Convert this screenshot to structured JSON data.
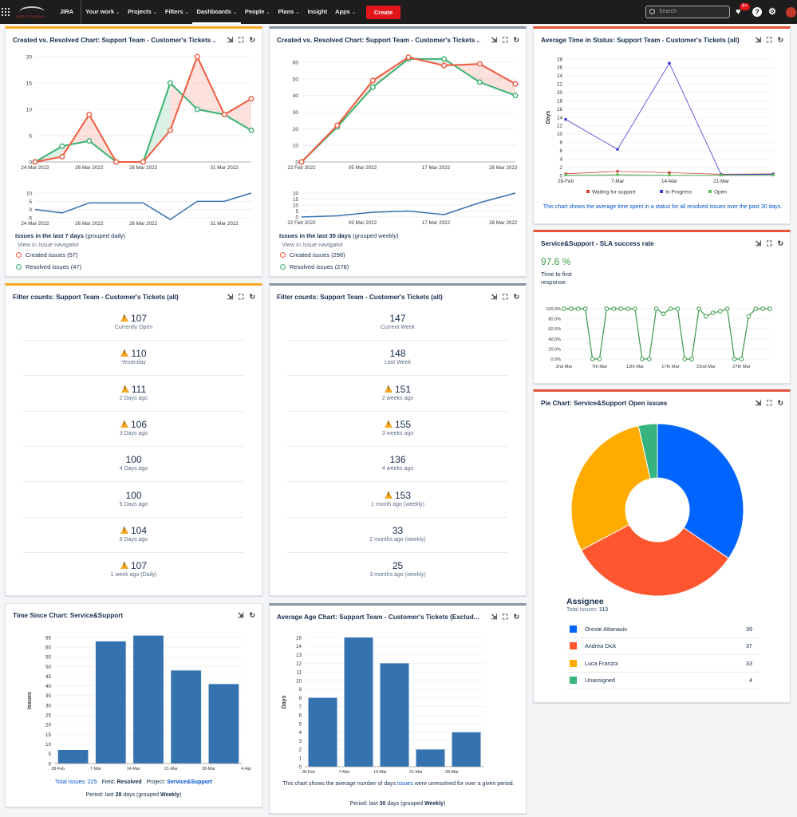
{
  "topbar": {
    "logo_text": "WORLD PHOENIX",
    "app": "JIRA",
    "nav": [
      {
        "label": "Your work",
        "chev": true
      },
      {
        "label": "Projects",
        "chev": true
      },
      {
        "label": "Filters",
        "chev": true
      },
      {
        "label": "Dashboards",
        "chev": true,
        "active": true
      },
      {
        "label": "People",
        "chev": true
      },
      {
        "label": "Plans",
        "chev": true
      },
      {
        "label": "Insight",
        "chev": false
      },
      {
        "label": "Apps",
        "chev": true
      }
    ],
    "create": "Create",
    "search_placeholder": "Search",
    "notif_badge": "9+"
  },
  "panel1": {
    "title": "Created vs. Resolved Chart: Support Team - Customer's Tickets ...",
    "summary_bold": "Issues in the last 7 days",
    "summary_rest": " (grouped daily)",
    "nav_link": "View in Issue navigator",
    "created": "Created issues (57)",
    "resolved": "Resolved issues (47)"
  },
  "panel2": {
    "title": "Created vs. Resolved Chart: Support Team - Customer's Tickets ...",
    "summary_bold": "Issues in the last 35 days",
    "summary_rest": " (grouped weekly)",
    "nav_link": "View in Issue navigator",
    "created": "Created issues (298)",
    "resolved": "Resolved issues (278)"
  },
  "panel3": {
    "title": "Average Time in Status: Support Team - Customer's Tickets (all)",
    "note": "This chart shows the average time spent in a status for all resolved issues over the past 30 days."
  },
  "panel4": {
    "title": "Service&Support - SLA success rate",
    "value": "97.6 %",
    "label": "Time to first response"
  },
  "panel5": {
    "title": "Filter counts: Support Team - Customer's Tickets (all)",
    "rows": [
      {
        "num": "107",
        "lbl": "Currently Open",
        "warn": true
      },
      {
        "num": "110",
        "lbl": "Yesterday",
        "warn": true
      },
      {
        "num": "111",
        "lbl": "2 Days ago",
        "warn": true
      },
      {
        "num": "106",
        "lbl": "3 Days ago",
        "warn": true
      },
      {
        "num": "100",
        "lbl": "4 Days ago",
        "warn": false
      },
      {
        "num": "100",
        "lbl": "5 Days ago",
        "warn": false
      },
      {
        "num": "104",
        "lbl": "6 Days ago",
        "warn": true
      },
      {
        "num": "107",
        "lbl": "1 week ago (Daily)",
        "warn": true
      }
    ]
  },
  "panel6": {
    "title": "Filter counts: Support Team - Customer's Tickets (all)",
    "rows": [
      {
        "num": "147",
        "lbl": "Current Week",
        "warn": false
      },
      {
        "num": "148",
        "lbl": "Last Week",
        "warn": false
      },
      {
        "num": "151",
        "lbl": "2 weeks ago",
        "warn": true
      },
      {
        "num": "155",
        "lbl": "3 weeks ago",
        "warn": true
      },
      {
        "num": "136",
        "lbl": "4 weeks ago",
        "warn": false
      },
      {
        "num": "153",
        "lbl": "1 month ago (weekly)",
        "warn": true
      },
      {
        "num": "33",
        "lbl": "2 months ago (weekly)",
        "warn": false
      },
      {
        "num": "25",
        "lbl": "3 months ago (weekly)",
        "warn": false
      }
    ]
  },
  "panel7": {
    "title": "Pie Chart: Service&Support Open issues",
    "legend_title": "Assignee",
    "total_label": "Total Issues: ",
    "total": "113"
  },
  "panel8": {
    "title": "Time Since Chart: Service&Support",
    "f1_label": "Total Issues: ",
    "f1_val": "225",
    "f2_label": "Field: ",
    "f2_val": "Resolved",
    "f3_label": "Project: ",
    "f3_val": "Service&Support",
    "period_pre": "Period: last ",
    "period_n": "28",
    "period_mid": " days (grouped ",
    "period_g": "Weekly",
    "period_end": ")"
  },
  "panel9": {
    "title": "Average Age Chart: Support Team - Customer's Tickets (Exclud...",
    "note_pre": "This chart shows the average number of days ",
    "note_link": "issues",
    "note_post": " were unresolved for over a given period.",
    "period_pre": "Period: last ",
    "period_n": "30",
    "period_mid": " days (grouped ",
    "period_g": "Weekly",
    "period_end": ")"
  },
  "colors": {
    "created": "#f05a40",
    "resolved": "#3bb273",
    "blue": "#3572b0",
    "pie": [
      "#0065ff",
      "#ff5630",
      "#ffab00",
      "#36b37e"
    ]
  },
  "chart_data": [
    {
      "id": "created-vs-resolved-7d",
      "type": "line",
      "x": [
        "24 Mar 2022",
        "25 Mar 2022",
        "26 Mar 2022",
        "27 Mar 2022",
        "28 Mar 2022",
        "29 Mar 2022",
        "30 Mar 2022",
        "31 Mar 2022",
        "01 Apr 2022"
      ],
      "xticks": [
        "24 Mar 2022",
        "26 Mar 2022",
        "28 Mar 2022",
        "31 Mar 2022"
      ],
      "series": [
        {
          "name": "Created issues (57)",
          "values": [
            0,
            1,
            9,
            0,
            0,
            6,
            20,
            9,
            12
          ]
        },
        {
          "name": "Resolved issues (47)",
          "values": [
            0,
            3,
            4,
            0,
            0,
            15,
            10,
            9,
            6
          ]
        }
      ],
      "ylim": [
        0,
        20
      ],
      "yticks": [
        0,
        5,
        10,
        15,
        20
      ],
      "sub": {
        "values": [
          0,
          -2,
          4,
          4,
          4,
          -6,
          5,
          5,
          10
        ],
        "yticks": [
          -5,
          0,
          5,
          10
        ]
      }
    },
    {
      "id": "created-vs-resolved-35d",
      "type": "line",
      "x": [
        "22 Feb 2022",
        "01 Mar 2022",
        "08 Mar 2022",
        "15 Mar 2022",
        "22 Mar 2022",
        "29 Mar 2022",
        "05 Apr 2022"
      ],
      "xticks": [
        "22 Feb 2022",
        "05 Mar 2022",
        "17 Mar 2022",
        "28 Mar 2022"
      ],
      "series": [
        {
          "name": "Created issues (298)",
          "values": [
            0,
            22,
            49,
            63,
            58,
            59,
            47
          ]
        },
        {
          "name": "Resolved issues (278)",
          "values": [
            0,
            21,
            45,
            62,
            62,
            48,
            40
          ]
        }
      ],
      "ylim": [
        0,
        60
      ],
      "yticks": [
        0,
        10,
        20,
        30,
        40,
        50,
        60
      ],
      "sub": {
        "values": [
          0,
          1,
          4,
          5,
          2,
          12,
          20
        ],
        "yticks": [
          0,
          5,
          10,
          15,
          20
        ]
      }
    },
    {
      "id": "avg-time-in-status",
      "type": "line",
      "x": [
        "28-Feb",
        "7-Mar",
        "14-Mar",
        "21-Mar",
        "28-Mar"
      ],
      "ylabel": "Days",
      "ylim": [
        0,
        28
      ],
      "yticks": [
        0,
        2,
        4,
        6,
        8,
        10,
        12,
        14,
        16,
        18,
        20,
        22,
        24,
        26,
        28
      ],
      "series": [
        {
          "name": "Waiting for support",
          "color": "#d04437",
          "values": [
            0.4,
            1,
            0.7,
            0.3,
            0.4
          ]
        },
        {
          "name": "In Progress",
          "color": "#3b3bd6",
          "values": [
            13.5,
            6.3,
            27,
            0.2,
            0.3
          ]
        },
        {
          "name": "Open",
          "color": "#59c359",
          "values": [
            0.1,
            0.2,
            0.1,
            0.1,
            0.1
          ]
        }
      ]
    },
    {
      "id": "sla-success-rate",
      "type": "line",
      "xticks": [
        "2nd Mar",
        "7th Mar",
        "12th Mar",
        "17th Mar",
        "22nd Mar",
        "27th Mar"
      ],
      "yticks": [
        "0.0%",
        "20.0%",
        "40.0%",
        "60.0%",
        "80.0%",
        "100.0%"
      ],
      "ylim": [
        0,
        100
      ],
      "series": [
        {
          "name": "Time to first response",
          "values": [
            100,
            100,
            100,
            100,
            0,
            0,
            100,
            100,
            100,
            100,
            100,
            0,
            0,
            100,
            90,
            100,
            100,
            0,
            0,
            100,
            85,
            92,
            95,
            100,
            0,
            0,
            85,
            100,
            100,
            100
          ]
        }
      ]
    },
    {
      "id": "pie-open-issues",
      "type": "pie",
      "categories": [
        "Oreste Attanasio",
        "Andrea Dick",
        "Luca Franzoi",
        "Unassigned"
      ],
      "values": [
        39,
        37,
        33,
        4
      ]
    },
    {
      "id": "time-since",
      "type": "bar",
      "categories": [
        "28-Feb",
        "7-Mar",
        "14-Mar",
        "21-Mar",
        "28-Mar"
      ],
      "xticks": [
        "28-Feb",
        "7-Mar",
        "14-Mar",
        "21-Mar",
        "28-Mar",
        "4-Apr"
      ],
      "values": [
        7,
        63,
        66,
        48,
        41
      ],
      "ylabel": "Issues",
      "ylim": [
        0,
        65
      ],
      "yticks": [
        0,
        5,
        10,
        15,
        20,
        25,
        30,
        35,
        40,
        45,
        50,
        55,
        60,
        65
      ]
    },
    {
      "id": "average-age",
      "type": "bar",
      "categories": [
        "28-Feb",
        "7-Mar",
        "14-Mar",
        "21-Mar",
        "28-Mar"
      ],
      "xticks": [
        "28-Feb",
        "7-Mar",
        "14-Mar",
        "21-Mar",
        "28-Mar"
      ],
      "values": [
        8,
        15,
        12,
        2,
        4
      ],
      "ylabel": "Days",
      "ylim": [
        0,
        15
      ],
      "yticks": [
        0,
        1,
        2,
        3,
        4,
        5,
        6,
        7,
        8,
        9,
        10,
        11,
        12,
        13,
        14,
        15
      ]
    }
  ]
}
